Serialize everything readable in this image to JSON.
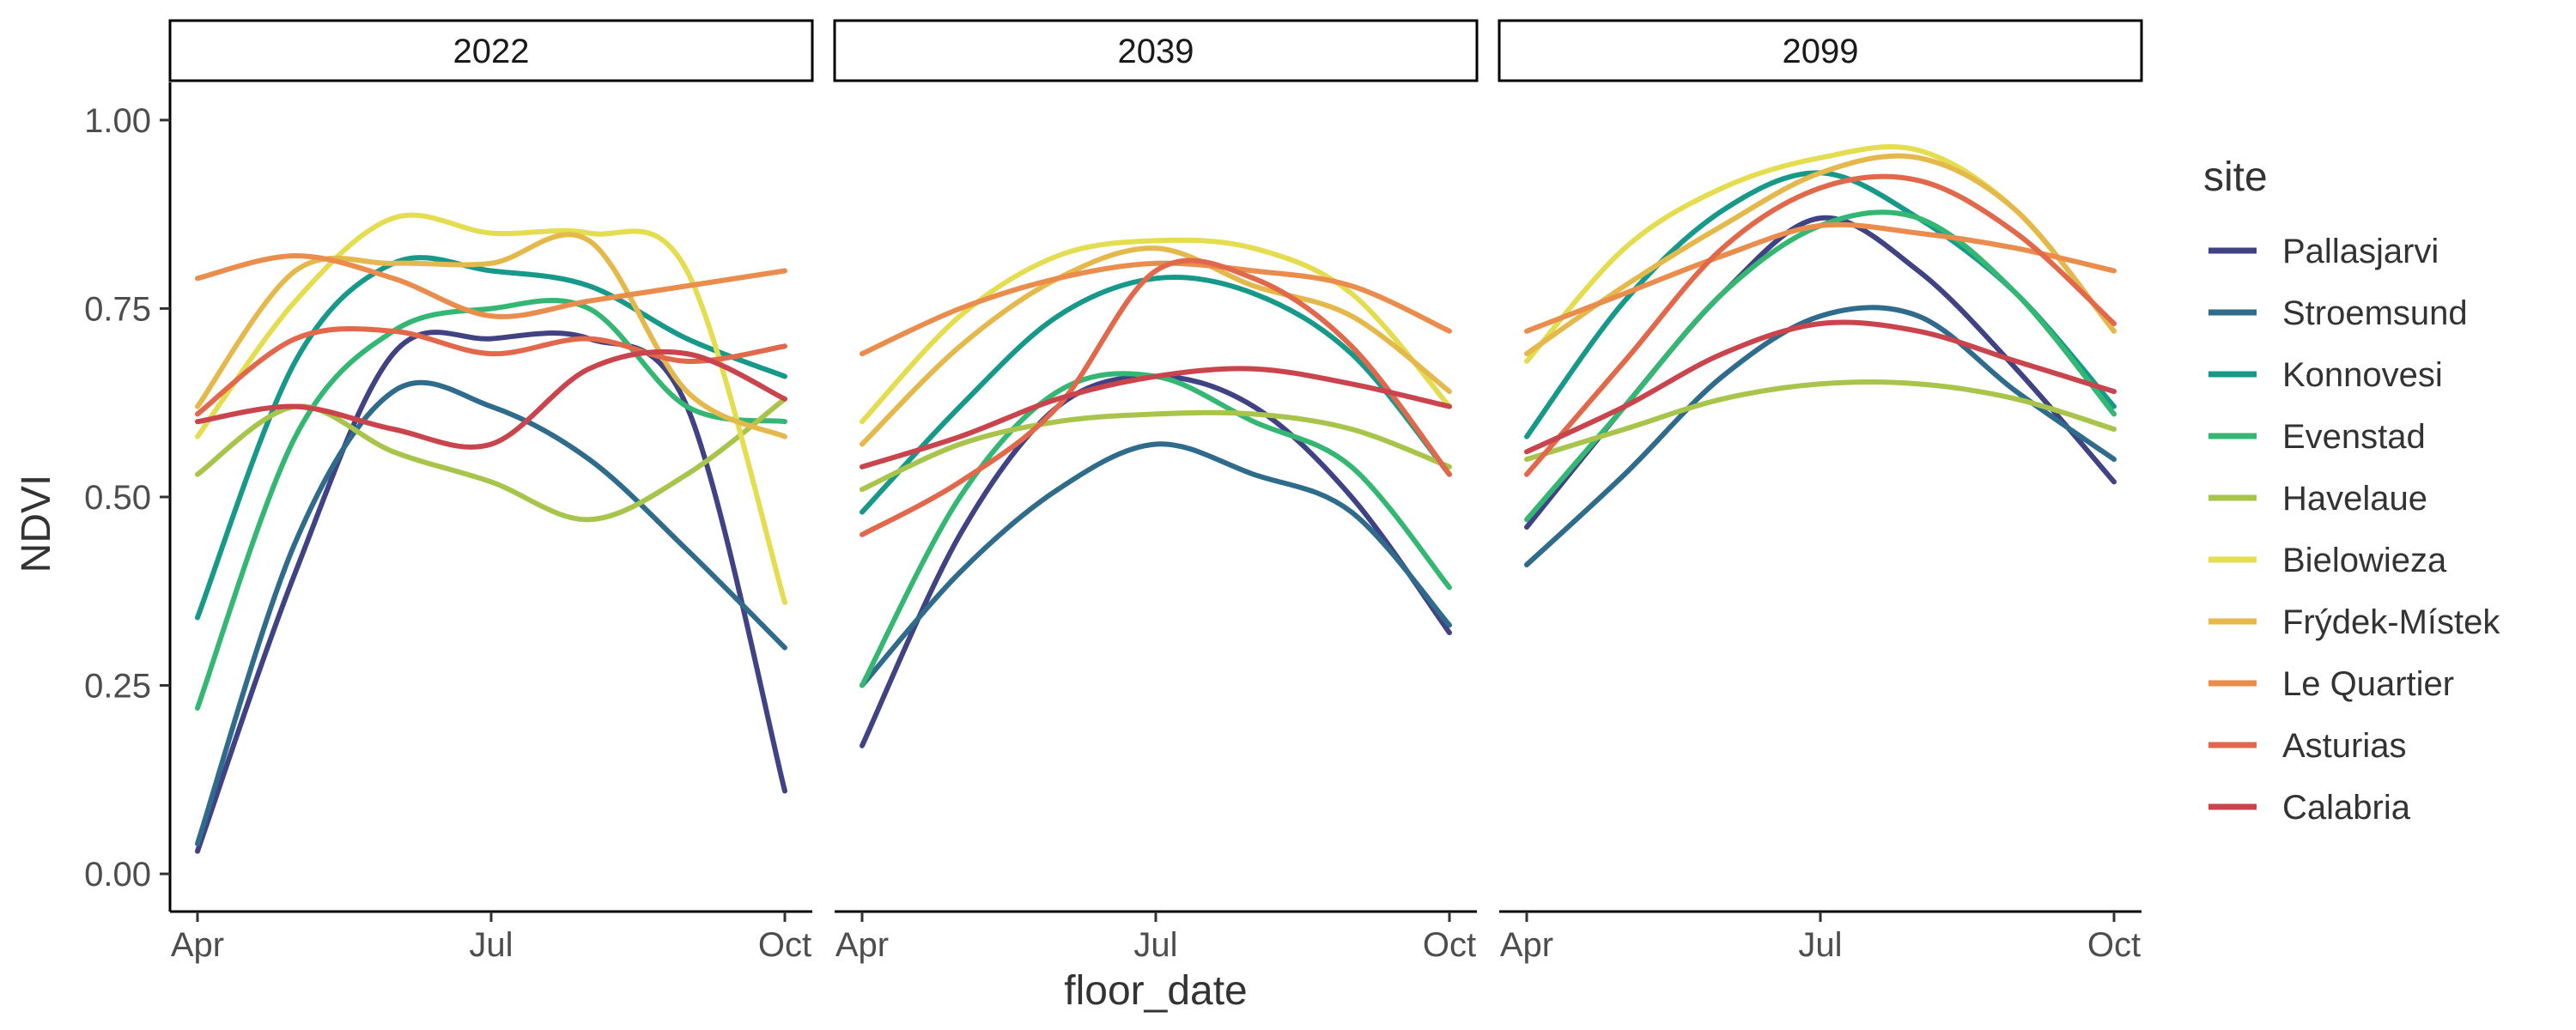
{
  "chart_data": {
    "type": "line",
    "xlabel": "floor_date",
    "ylabel": "NDVI",
    "ylim": [
      -0.05,
      1.05
    ],
    "y_ticks": [
      0.0,
      0.25,
      0.5,
      0.75,
      1.0
    ],
    "y_tick_labels": [
      "0.00",
      "0.25",
      "0.50",
      "0.75",
      "1.00"
    ],
    "x_range": [
      "Apr",
      "Oct"
    ],
    "x_ticks": [
      "Apr",
      "Jul",
      "Oct"
    ],
    "grid": false,
    "legend_title": "site",
    "legend_position": "right",
    "panels": [
      {
        "label": "2022",
        "series": [
          {
            "name": "Pallasjarvi",
            "x": [
              "Apr",
              "May",
              "Jun",
              "Jul",
              "Aug",
              "Sep",
              "Oct"
            ],
            "y": [
              0.03,
              0.4,
              0.69,
              0.71,
              0.71,
              0.62,
              0.11
            ]
          },
          {
            "name": "Stroemsund",
            "x": [
              "Apr",
              "May",
              "Jun",
              "Jul",
              "Aug",
              "Sep",
              "Oct"
            ],
            "y": [
              0.04,
              0.44,
              0.64,
              0.62,
              0.55,
              0.43,
              0.3
            ]
          },
          {
            "name": "Konnovesi",
            "x": [
              "Apr",
              "May",
              "Jun",
              "Jul",
              "Aug",
              "Sep",
              "Oct"
            ],
            "y": [
              0.34,
              0.68,
              0.81,
              0.8,
              0.78,
              0.71,
              0.66
            ]
          },
          {
            "name": "Evenstad",
            "x": [
              "Apr",
              "May",
              "Jun",
              "Jul",
              "Aug",
              "Sep",
              "Oct"
            ],
            "y": [
              0.22,
              0.58,
              0.72,
              0.75,
              0.75,
              0.62,
              0.6
            ]
          },
          {
            "name": "Havelaue",
            "x": [
              "Apr",
              "May",
              "Jun",
              "Jul",
              "Aug",
              "Sep",
              "Oct"
            ],
            "y": [
              0.53,
              0.62,
              0.56,
              0.52,
              0.47,
              0.53,
              0.63
            ]
          },
          {
            "name": "Bielowieza",
            "x": [
              "Apr",
              "May",
              "Jun",
              "Jul",
              "Aug",
              "Sep",
              "Oct"
            ],
            "y": [
              0.58,
              0.76,
              0.87,
              0.85,
              0.85,
              0.8,
              0.36
            ]
          },
          {
            "name": "Frýdek-Místek",
            "x": [
              "Apr",
              "May",
              "Jun",
              "Jul",
              "Aug",
              "Sep",
              "Oct"
            ],
            "y": [
              0.62,
              0.8,
              0.81,
              0.81,
              0.84,
              0.64,
              0.58
            ]
          },
          {
            "name": "Le Quartier",
            "x": [
              "Apr",
              "May",
              "Jun",
              "Jul",
              "Aug",
              "Sep",
              "Oct"
            ],
            "y": [
              0.79,
              0.82,
              0.79,
              0.74,
              0.76,
              0.78,
              0.8
            ]
          },
          {
            "name": "Asturias",
            "x": [
              "Apr",
              "May",
              "Jun",
              "Jul",
              "Aug",
              "Sep",
              "Oct"
            ],
            "y": [
              0.61,
              0.71,
              0.72,
              0.69,
              0.71,
              0.68,
              0.7
            ]
          },
          {
            "name": "Calabria",
            "x": [
              "Apr",
              "May",
              "Jun",
              "Jul",
              "Aug",
              "Sep",
              "Oct"
            ],
            "y": [
              0.6,
              0.62,
              0.59,
              0.57,
              0.67,
              0.69,
              0.63
            ]
          }
        ]
      },
      {
        "label": "2039",
        "series": [
          {
            "name": "Pallasjarvi",
            "x": [
              "Apr",
              "May",
              "Jun",
              "Jul",
              "Aug",
              "Sep",
              "Oct"
            ],
            "y": [
              0.17,
              0.45,
              0.62,
              0.66,
              0.62,
              0.5,
              0.32
            ]
          },
          {
            "name": "Stroemsund",
            "x": [
              "Apr",
              "May",
              "Jun",
              "Jul",
              "Aug",
              "Sep",
              "Oct"
            ],
            "y": [
              0.25,
              0.4,
              0.51,
              0.57,
              0.53,
              0.48,
              0.33
            ]
          },
          {
            "name": "Konnovesi",
            "x": [
              "Apr",
              "May",
              "Jun",
              "Jul",
              "Aug",
              "Sep",
              "Oct"
            ],
            "y": [
              0.48,
              0.62,
              0.74,
              0.79,
              0.77,
              0.69,
              0.53
            ]
          },
          {
            "name": "Evenstad",
            "x": [
              "Apr",
              "May",
              "Jun",
              "Jul",
              "Aug",
              "Sep",
              "Oct"
            ],
            "y": [
              0.25,
              0.5,
              0.64,
              0.66,
              0.6,
              0.54,
              0.38
            ]
          },
          {
            "name": "Havelaue",
            "x": [
              "Apr",
              "May",
              "Jun",
              "Jul",
              "Aug",
              "Sep",
              "Oct"
            ],
            "y": [
              0.51,
              0.57,
              0.6,
              0.61,
              0.61,
              0.59,
              0.54
            ]
          },
          {
            "name": "Bielowieza",
            "x": [
              "Apr",
              "May",
              "Jun",
              "Jul",
              "Aug",
              "Sep",
              "Oct"
            ],
            "y": [
              0.6,
              0.74,
              0.82,
              0.84,
              0.83,
              0.77,
              0.62
            ]
          },
          {
            "name": "Frýdek-Místek",
            "x": [
              "Apr",
              "May",
              "Jun",
              "Jul",
              "Aug",
              "Sep",
              "Oct"
            ],
            "y": [
              0.57,
              0.7,
              0.79,
              0.83,
              0.78,
              0.74,
              0.64
            ]
          },
          {
            "name": "Le Quartier",
            "x": [
              "Apr",
              "May",
              "Jun",
              "Jul",
              "Aug",
              "Sep",
              "Oct"
            ],
            "y": [
              0.69,
              0.75,
              0.79,
              0.81,
              0.8,
              0.78,
              0.72
            ]
          },
          {
            "name": "Asturias",
            "x": [
              "Apr",
              "May",
              "Jun",
              "Jul",
              "Aug",
              "Sep",
              "Oct"
            ],
            "y": [
              0.45,
              0.52,
              0.62,
              0.8,
              0.79,
              0.7,
              0.53
            ]
          },
          {
            "name": "Calabria",
            "x": [
              "Apr",
              "May",
              "Jun",
              "Jul",
              "Aug",
              "Sep",
              "Oct"
            ],
            "y": [
              0.54,
              0.58,
              0.63,
              0.66,
              0.67,
              0.65,
              0.62
            ]
          }
        ]
      },
      {
        "label": "2099",
        "series": [
          {
            "name": "Pallasjarvi",
            "x": [
              "Apr",
              "May",
              "Jun",
              "Jul",
              "Aug",
              "Sep",
              "Oct"
            ],
            "y": [
              0.46,
              0.62,
              0.77,
              0.87,
              0.8,
              0.67,
              0.52
            ]
          },
          {
            "name": "Stroemsund",
            "x": [
              "Apr",
              "May",
              "Jun",
              "Jul",
              "Aug",
              "Sep",
              "Oct"
            ],
            "y": [
              0.41,
              0.53,
              0.66,
              0.74,
              0.74,
              0.64,
              0.55
            ]
          },
          {
            "name": "Konnovesi",
            "x": [
              "Apr",
              "May",
              "Jun",
              "Jul",
              "Aug",
              "Sep",
              "Oct"
            ],
            "y": [
              0.58,
              0.76,
              0.88,
              0.93,
              0.87,
              0.77,
              0.62
            ]
          },
          {
            "name": "Evenstad",
            "x": [
              "Apr",
              "May",
              "Jun",
              "Jul",
              "Aug",
              "Sep",
              "Oct"
            ],
            "y": [
              0.47,
              0.62,
              0.77,
              0.86,
              0.87,
              0.77,
              0.61
            ]
          },
          {
            "name": "Havelaue",
            "x": [
              "Apr",
              "May",
              "Jun",
              "Jul",
              "Aug",
              "Sep",
              "Oct"
            ],
            "y": [
              0.55,
              0.59,
              0.63,
              0.65,
              0.65,
              0.63,
              0.59
            ]
          },
          {
            "name": "Bielowieza",
            "x": [
              "Apr",
              "May",
              "Jun",
              "Jul",
              "Aug",
              "Sep",
              "Oct"
            ],
            "y": [
              0.68,
              0.83,
              0.91,
              0.95,
              0.96,
              0.88,
              0.72
            ]
          },
          {
            "name": "Frýdek-Místek",
            "x": [
              "Apr",
              "May",
              "Jun",
              "Jul",
              "Aug",
              "Sep",
              "Oct"
            ],
            "y": [
              0.69,
              0.78,
              0.86,
              0.93,
              0.95,
              0.88,
              0.72
            ]
          },
          {
            "name": "Le Quartier",
            "x": [
              "Apr",
              "May",
              "Jun",
              "Jul",
              "Aug",
              "Sep",
              "Oct"
            ],
            "y": [
              0.72,
              0.77,
              0.82,
              0.86,
              0.85,
              0.83,
              0.8
            ]
          },
          {
            "name": "Asturias",
            "x": [
              "Apr",
              "May",
              "Jun",
              "Jul",
              "Aug",
              "Sep",
              "Oct"
            ],
            "y": [
              0.53,
              0.68,
              0.83,
              0.91,
              0.92,
              0.85,
              0.73
            ]
          },
          {
            "name": "Calabria",
            "x": [
              "Apr",
              "May",
              "Jun",
              "Jul",
              "Aug",
              "Sep",
              "Oct"
            ],
            "y": [
              0.56,
              0.62,
              0.69,
              0.73,
              0.72,
              0.68,
              0.64
            ]
          }
        ]
      }
    ],
    "legend": [
      {
        "name": "Pallasjarvi",
        "color": "#404284"
      },
      {
        "name": "Stroemsund",
        "color": "#2f6b8a"
      },
      {
        "name": "Konnovesi",
        "color": "#17998a"
      },
      {
        "name": "Evenstad",
        "color": "#35b774"
      },
      {
        "name": "Havelaue",
        "color": "#a8c44a"
      },
      {
        "name": "Bielowieza",
        "color": "#e3dd4f"
      },
      {
        "name": "Frýdek-Místek",
        "color": "#e5b84b"
      },
      {
        "name": "Le Quartier",
        "color": "#e98c4c"
      },
      {
        "name": "Asturias",
        "color": "#e1684a"
      },
      {
        "name": "Calabria",
        "color": "#c9444c"
      }
    ]
  }
}
